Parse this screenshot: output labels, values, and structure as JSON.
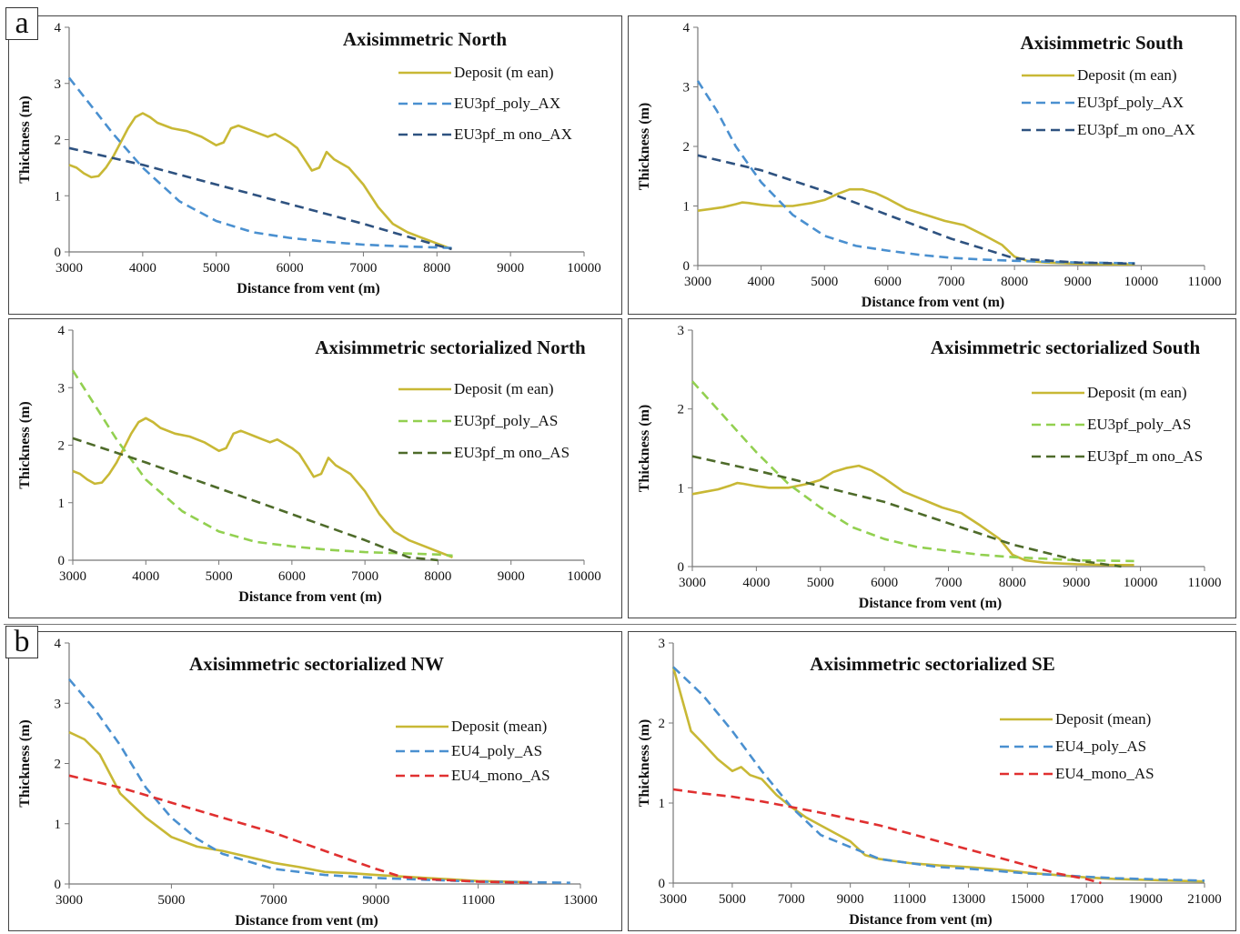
{
  "figure": {
    "panel_labels": [
      "a",
      "b"
    ]
  },
  "colors": {
    "deposit": "#c8b835",
    "blue_light": "#4a90d0",
    "blue_dark": "#2e5280",
    "green_light": "#92d050",
    "green_dark": "#4e6b2a",
    "red": "#e03030"
  },
  "chart_data": [
    {
      "type": "line",
      "title": "Axisimmetric  North",
      "xlabel": "Distance  from  vent  (m)",
      "ylabel": "Thickness (m)",
      "xlim": [
        3000,
        10000
      ],
      "ylim": [
        0,
        4
      ],
      "xticks": [
        3000,
        4000,
        5000,
        6000,
        7000,
        8000,
        9000,
        10000
      ],
      "yticks": [
        0,
        1,
        2,
        3,
        4
      ],
      "legend_position": "top-right",
      "series": [
        {
          "name": "Deposit (m ean)",
          "color": "#c8b835",
          "dash": false,
          "x": [
            3000,
            3100,
            3200,
            3300,
            3400,
            3500,
            3600,
            3700,
            3800,
            3900,
            4000,
            4100,
            4200,
            4400,
            4600,
            4800,
            5000,
            5100,
            5200,
            5300,
            5400,
            5500,
            5600,
            5700,
            5800,
            6000,
            6100,
            6200,
            6300,
            6400,
            6500,
            6600,
            6800,
            7000,
            7200,
            7400,
            7600,
            7800,
            8000,
            8200
          ],
          "y": [
            1.55,
            1.5,
            1.4,
            1.33,
            1.35,
            1.5,
            1.7,
            1.95,
            2.2,
            2.4,
            2.47,
            2.4,
            2.3,
            2.2,
            2.15,
            2.05,
            1.9,
            1.95,
            2.2,
            2.25,
            2.2,
            2.15,
            2.1,
            2.05,
            2.1,
            1.95,
            1.85,
            1.65,
            1.45,
            1.5,
            1.78,
            1.65,
            1.5,
            1.2,
            0.8,
            0.5,
            0.35,
            0.25,
            0.15,
            0.05
          ]
        },
        {
          "name": "EU3pf_poly_AX",
          "color": "#4a90d0",
          "dash": true,
          "x": [
            3000,
            3300,
            3600,
            4000,
            4500,
            5000,
            5500,
            6000,
            6500,
            7000,
            7500,
            8000,
            8200
          ],
          "y": [
            3.1,
            2.6,
            2.1,
            1.5,
            0.9,
            0.55,
            0.35,
            0.25,
            0.18,
            0.13,
            0.1,
            0.08,
            0.07
          ]
        },
        {
          "name": "EU3pf_m ono_AX",
          "color": "#2e5280",
          "dash": true,
          "x": [
            3000,
            4000,
            5000,
            6000,
            7000,
            8000,
            8200
          ],
          "y": [
            1.85,
            1.55,
            1.2,
            0.85,
            0.5,
            0.12,
            0.05
          ]
        }
      ]
    },
    {
      "type": "line",
      "title": "Axisimmetric  South",
      "xlabel": "Distance  from  vent  (m)",
      "ylabel": "Thickness (m)",
      "xlim": [
        3000,
        11000
      ],
      "ylim": [
        0,
        4
      ],
      "xticks": [
        3000,
        4000,
        5000,
        6000,
        7000,
        8000,
        9000,
        10000,
        11000
      ],
      "yticks": [
        0,
        1,
        2,
        3,
        4
      ],
      "legend_position": "top-right",
      "series": [
        {
          "name": "Deposit (m ean)",
          "color": "#c8b835",
          "dash": false,
          "x": [
            3000,
            3200,
            3400,
            3600,
            3700,
            3800,
            4000,
            4200,
            4500,
            4800,
            5000,
            5200,
            5400,
            5600,
            5800,
            6000,
            6300,
            6600,
            6900,
            7200,
            7500,
            7800,
            8000,
            8200,
            8500,
            9000,
            9500,
            9900
          ],
          "y": [
            0.92,
            0.95,
            0.98,
            1.03,
            1.06,
            1.05,
            1.02,
            1.0,
            1.0,
            1.05,
            1.1,
            1.2,
            1.28,
            1.28,
            1.22,
            1.12,
            0.95,
            0.85,
            0.75,
            0.68,
            0.52,
            0.35,
            0.15,
            0.08,
            0.05,
            0.03,
            0.02,
            0.02
          ]
        },
        {
          "name": "EU3pf_poly_AX",
          "color": "#4a90d0",
          "dash": true,
          "x": [
            3000,
            3300,
            3600,
            4000,
            4500,
            5000,
            5500,
            6000,
            6500,
            7000,
            7500,
            8000,
            9000,
            9900
          ],
          "y": [
            3.1,
            2.6,
            2.0,
            1.4,
            0.85,
            0.5,
            0.33,
            0.25,
            0.18,
            0.13,
            0.1,
            0.08,
            0.05,
            0.04
          ]
        },
        {
          "name": "EU3pf_m ono_AX",
          "color": "#2e5280",
          "dash": true,
          "x": [
            3000,
            4000,
            5000,
            6000,
            7000,
            8000,
            9000,
            9900
          ],
          "y": [
            1.85,
            1.6,
            1.25,
            0.85,
            0.45,
            0.12,
            0.05,
            0.03
          ]
        }
      ]
    },
    {
      "type": "line",
      "title": "Axisimmetric  sectorialized  North",
      "xlabel": "Distance  from  vent  (m)",
      "ylabel": "Thickness (m)",
      "xlim": [
        3000,
        10000
      ],
      "ylim": [
        0,
        4
      ],
      "xticks": [
        3000,
        4000,
        5000,
        6000,
        7000,
        8000,
        9000,
        10000
      ],
      "yticks": [
        0,
        1,
        2,
        3,
        4
      ],
      "legend_position": "top-right",
      "series": [
        {
          "name": "Deposit (m ean)",
          "color": "#c8b835",
          "dash": false,
          "x": [
            3000,
            3100,
            3200,
            3300,
            3400,
            3500,
            3600,
            3700,
            3800,
            3900,
            4000,
            4100,
            4200,
            4400,
            4600,
            4800,
            5000,
            5100,
            5200,
            5300,
            5400,
            5500,
            5600,
            5700,
            5800,
            6000,
            6100,
            6200,
            6300,
            6400,
            6500,
            6600,
            6800,
            7000,
            7200,
            7400,
            7600,
            7800,
            8000,
            8200
          ],
          "y": [
            1.55,
            1.5,
            1.4,
            1.33,
            1.35,
            1.5,
            1.7,
            1.95,
            2.2,
            2.4,
            2.47,
            2.4,
            2.3,
            2.2,
            2.15,
            2.05,
            1.9,
            1.95,
            2.2,
            2.25,
            2.2,
            2.15,
            2.1,
            2.05,
            2.1,
            1.95,
            1.85,
            1.65,
            1.45,
            1.5,
            1.78,
            1.65,
            1.5,
            1.2,
            0.8,
            0.5,
            0.35,
            0.25,
            0.15,
            0.05
          ]
        },
        {
          "name": "EU3pf_poly_AS",
          "color": "#92d050",
          "dash": true,
          "x": [
            3000,
            3300,
            3600,
            4000,
            4500,
            5000,
            5500,
            6000,
            6500,
            7000,
            7500,
            8000,
            8200
          ],
          "y": [
            3.3,
            2.7,
            2.1,
            1.4,
            0.85,
            0.5,
            0.32,
            0.24,
            0.18,
            0.14,
            0.12,
            0.1,
            0.08
          ]
        },
        {
          "name": "EU3pf_m ono_AS",
          "color": "#4e6b2a",
          "dash": true,
          "x": [
            3000,
            4000,
            5000,
            6000,
            7000,
            7600,
            8000
          ],
          "y": [
            2.12,
            1.7,
            1.25,
            0.8,
            0.35,
            0.05,
            0.0
          ]
        }
      ]
    },
    {
      "type": "line",
      "title": "Axisimmetric  sectorialized  South",
      "xlabel": "Distance  from  vent  (m)",
      "ylabel": "Thickness (m)",
      "xlim": [
        3000,
        11000
      ],
      "ylim": [
        0,
        3
      ],
      "xticks": [
        3000,
        4000,
        5000,
        6000,
        7000,
        8000,
        9000,
        10000,
        11000
      ],
      "yticks": [
        0,
        1,
        2,
        3
      ],
      "legend_position": "top-right",
      "series": [
        {
          "name": "Deposit (m ean)",
          "color": "#c8b835",
          "dash": false,
          "x": [
            3000,
            3200,
            3400,
            3600,
            3700,
            3800,
            4000,
            4200,
            4500,
            4800,
            5000,
            5200,
            5400,
            5600,
            5800,
            6000,
            6300,
            6600,
            6900,
            7200,
            7500,
            7800,
            8000,
            8200,
            8500,
            9000,
            9500,
            9900
          ],
          "y": [
            0.92,
            0.95,
            0.98,
            1.03,
            1.06,
            1.05,
            1.02,
            1.0,
            1.0,
            1.05,
            1.1,
            1.2,
            1.25,
            1.28,
            1.22,
            1.12,
            0.95,
            0.85,
            0.75,
            0.68,
            0.52,
            0.35,
            0.15,
            0.08,
            0.05,
            0.03,
            0.02,
            0.02
          ]
        },
        {
          "name": "EU3pf_poly_AS",
          "color": "#92d050",
          "dash": true,
          "x": [
            3000,
            3500,
            4000,
            4500,
            5000,
            5500,
            6000,
            6500,
            7000,
            7500,
            8000,
            9000,
            9900
          ],
          "y": [
            2.35,
            1.9,
            1.45,
            1.05,
            0.75,
            0.5,
            0.35,
            0.25,
            0.2,
            0.15,
            0.12,
            0.08,
            0.07
          ]
        },
        {
          "name": "EU3pf_m ono_AS",
          "color": "#4e6b2a",
          "dash": true,
          "x": [
            3000,
            4000,
            5000,
            6000,
            7000,
            8000,
            9000,
            9700
          ],
          "y": [
            1.4,
            1.22,
            1.02,
            0.82,
            0.55,
            0.28,
            0.08,
            0.0
          ]
        }
      ]
    },
    {
      "type": "line",
      "title": "Axisimmetric  sectorialized  NW",
      "xlabel": "Distance  from  vent  (m)",
      "ylabel": "Thickness (m)",
      "xlim": [
        3000,
        13000
      ],
      "ylim": [
        0,
        4
      ],
      "xticks": [
        3000,
        5000,
        7000,
        9000,
        11000,
        13000
      ],
      "yticks": [
        0,
        1,
        2,
        3,
        4
      ],
      "legend_position": "right",
      "series": [
        {
          "name": "Deposit (mean)",
          "color": "#c8b835",
          "dash": false,
          "x": [
            3000,
            3300,
            3600,
            4000,
            4500,
            5000,
            5500,
            6000,
            6500,
            7000,
            7500,
            8000,
            8500,
            9000,
            10000,
            11000,
            12000
          ],
          "y": [
            2.52,
            2.4,
            2.15,
            1.5,
            1.1,
            0.78,
            0.62,
            0.55,
            0.45,
            0.35,
            0.28,
            0.2,
            0.18,
            0.15,
            0.1,
            0.05,
            0.03
          ]
        },
        {
          "name": "EU4_poly_AS",
          "color": "#4a90d0",
          "dash": true,
          "x": [
            3000,
            3500,
            4000,
            4500,
            5000,
            5500,
            6000,
            7000,
            8000,
            9000,
            10000,
            11000,
            12000,
            12800
          ],
          "y": [
            3.4,
            2.9,
            2.3,
            1.6,
            1.1,
            0.75,
            0.5,
            0.25,
            0.15,
            0.1,
            0.07,
            0.04,
            0.03,
            0.02
          ]
        },
        {
          "name": "EU4_mono_AS",
          "color": "#e03030",
          "dash": true,
          "x": [
            3000,
            4000,
            5000,
            6000,
            7000,
            8000,
            9000,
            9500,
            10000,
            11000,
            12000
          ],
          "y": [
            1.8,
            1.6,
            1.35,
            1.1,
            0.85,
            0.55,
            0.25,
            0.12,
            0.08,
            0.04,
            0.02
          ]
        }
      ]
    },
    {
      "type": "line",
      "title": "Axisimmetric  sectorialized  SE",
      "xlabel": "Distance  from  vent  (m)",
      "ylabel": "Thickness (m)",
      "xlim": [
        3000,
        21000
      ],
      "ylim": [
        0,
        3
      ],
      "xticks": [
        3000,
        5000,
        7000,
        9000,
        11000,
        13000,
        15000,
        17000,
        19000,
        21000
      ],
      "yticks": [
        0,
        1,
        2,
        3
      ],
      "legend_position": "right",
      "series": [
        {
          "name": "Deposit (mean)",
          "color": "#c8b835",
          "dash": false,
          "x": [
            3000,
            3300,
            3600,
            4000,
            4500,
            5000,
            5300,
            5600,
            6000,
            6500,
            7000,
            7500,
            8000,
            8500,
            9000,
            9500,
            10000,
            11000,
            12000,
            13000,
            14000,
            15000,
            16000,
            17000,
            18000,
            19000,
            20000,
            21000
          ],
          "y": [
            2.7,
            2.3,
            1.9,
            1.75,
            1.55,
            1.4,
            1.45,
            1.35,
            1.3,
            1.1,
            0.95,
            0.82,
            0.72,
            0.62,
            0.52,
            0.35,
            0.3,
            0.25,
            0.22,
            0.2,
            0.17,
            0.13,
            0.1,
            0.07,
            0.05,
            0.04,
            0.03,
            0.02
          ]
        },
        {
          "name": "EU4_poly_AS",
          "color": "#4a90d0",
          "dash": true,
          "x": [
            3000,
            4000,
            5000,
            6000,
            7000,
            8000,
            9000,
            10000,
            11000,
            12000,
            13000,
            14000,
            15000,
            16000,
            17000,
            18000,
            19000,
            20000,
            21000
          ],
          "y": [
            2.7,
            2.35,
            1.9,
            1.4,
            0.95,
            0.6,
            0.45,
            0.3,
            0.25,
            0.2,
            0.18,
            0.15,
            0.12,
            0.1,
            0.08,
            0.06,
            0.05,
            0.04,
            0.03
          ]
        },
        {
          "name": "EU4_mono_AS",
          "color": "#e03030",
          "dash": true,
          "x": [
            3000,
            4000,
            5000,
            6000,
            7000,
            8000,
            9000,
            10000,
            11000,
            12000,
            13000,
            14000,
            15000,
            16000,
            17000,
            17500
          ],
          "y": [
            1.17,
            1.12,
            1.08,
            1.02,
            0.95,
            0.88,
            0.8,
            0.72,
            0.62,
            0.52,
            0.42,
            0.32,
            0.22,
            0.12,
            0.05,
            0.0
          ]
        }
      ]
    }
  ]
}
